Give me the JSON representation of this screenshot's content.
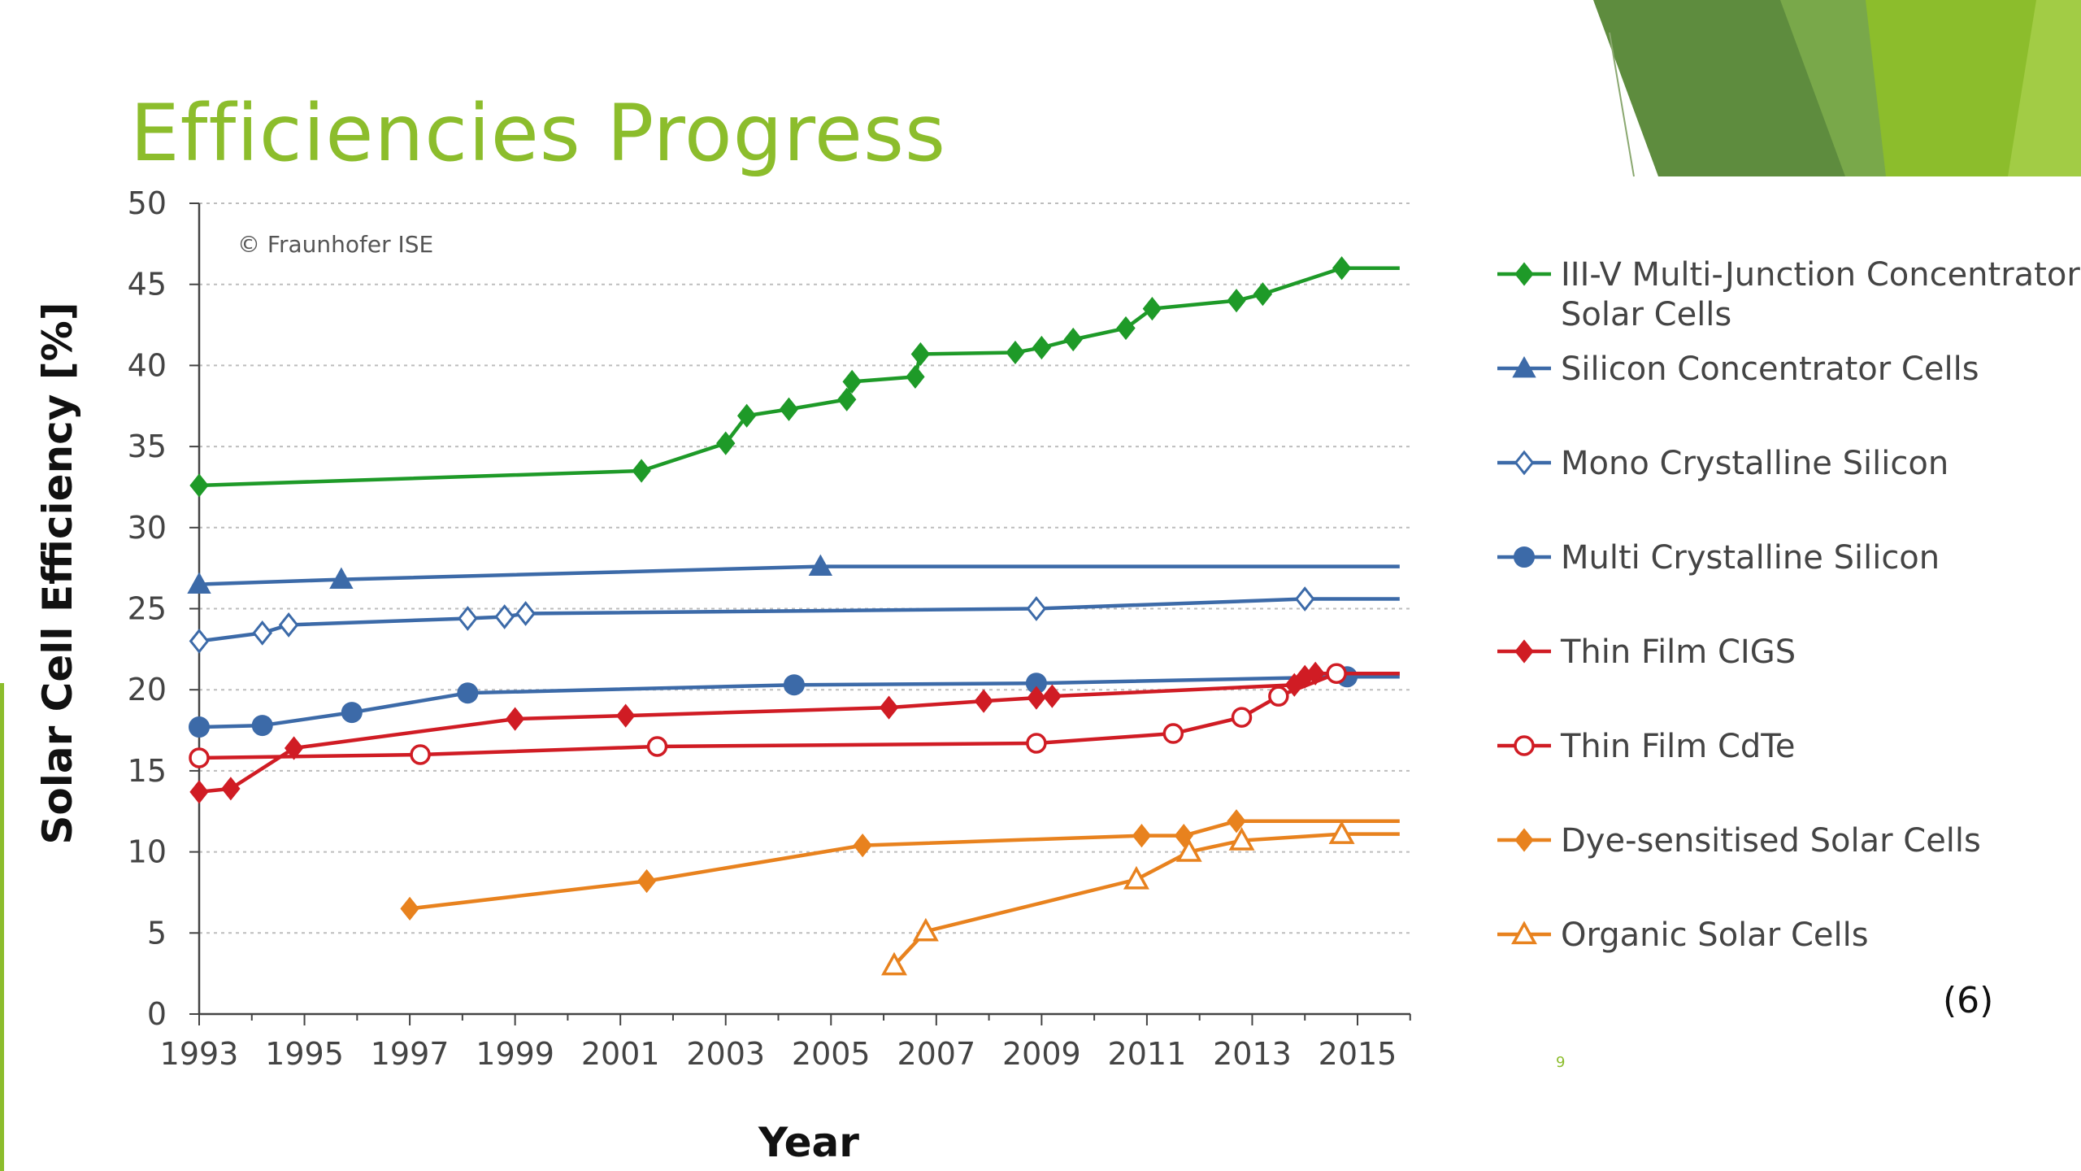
{
  "slide": {
    "title": "Efficiencies Progress",
    "reference": "(6)",
    "slide_number": "9",
    "accent_color": "#8cbd2c"
  },
  "chart_data": {
    "type": "line",
    "title": "",
    "credit": "© Fraunhofer ISE",
    "xlabel": "Year",
    "ylabel": "Solar Cell Efficiency [%]",
    "xlim": [
      1993,
      2016
    ],
    "ylim": [
      0,
      50
    ],
    "x_ticks": [
      1993,
      1995,
      1997,
      1999,
      2001,
      2003,
      2005,
      2007,
      2009,
      2011,
      2013,
      2015
    ],
    "y_ticks": [
      0,
      5,
      10,
      15,
      20,
      25,
      30,
      35,
      40,
      45,
      50
    ],
    "grid": true,
    "legend_position": "right",
    "series": [
      {
        "name": "III-V Multi-Junction Concentrator Solar Cells",
        "name_lines": [
          "III-V Multi-Junction Concentrator",
          "Solar Cells"
        ],
        "color": "#1e9a28",
        "marker": "diamond-filled",
        "points": [
          [
            1993,
            32.6
          ],
          [
            2001.4,
            33.5
          ],
          [
            2003,
            35.2
          ],
          [
            2003.4,
            36.9
          ],
          [
            2004.2,
            37.3
          ],
          [
            2005.3,
            37.9
          ],
          [
            2005.4,
            39.0
          ],
          [
            2006.6,
            39.3
          ],
          [
            2006.7,
            40.7
          ],
          [
            2008.5,
            40.8
          ],
          [
            2009,
            41.1
          ],
          [
            2009.6,
            41.6
          ],
          [
            2010.6,
            42.3
          ],
          [
            2011.1,
            43.5
          ],
          [
            2012.7,
            44.0
          ],
          [
            2013.2,
            44.4
          ],
          [
            2014.7,
            46.0
          ]
        ],
        "end_x": 2015.8
      },
      {
        "name": "Silicon Concentrator Cells",
        "name_lines": [
          "Silicon Concentrator Cells"
        ],
        "color": "#3c6aa8",
        "marker": "triangle-filled",
        "points": [
          [
            1993,
            26.5
          ],
          [
            1995.7,
            26.8
          ],
          [
            2004.8,
            27.6
          ]
        ],
        "end_x": 2015.8
      },
      {
        "name": "Mono Crystalline Silicon",
        "name_lines": [
          "Mono Crystalline Silicon"
        ],
        "color": "#3c6aa8",
        "marker": "diamond-open",
        "points": [
          [
            1993,
            23.0
          ],
          [
            1994.2,
            23.5
          ],
          [
            1994.7,
            24.0
          ],
          [
            1998.1,
            24.4
          ],
          [
            1998.8,
            24.5
          ],
          [
            1999.2,
            24.7
          ],
          [
            2008.9,
            25.0
          ],
          [
            2014.0,
            25.6
          ]
        ],
        "end_x": 2015.8
      },
      {
        "name": "Multi Crystalline Silicon",
        "name_lines": [
          "Multi Crystalline Silicon"
        ],
        "color": "#3c6aa8",
        "marker": "circle-filled",
        "points": [
          [
            1993,
            17.7
          ],
          [
            1994.2,
            17.8
          ],
          [
            1995.9,
            18.6
          ],
          [
            1998.1,
            19.8
          ],
          [
            2004.3,
            20.3
          ],
          [
            2008.9,
            20.4
          ],
          [
            2014.8,
            20.8
          ]
        ],
        "end_x": 2015.8
      },
      {
        "name": "Thin Film CIGS",
        "name_lines": [
          "Thin Film CIGS"
        ],
        "color": "#d01c24",
        "marker": "diamond-filled",
        "points": [
          [
            1993,
            13.7
          ],
          [
            1993.6,
            13.9
          ],
          [
            1994.8,
            16.4
          ],
          [
            1999.0,
            18.2
          ],
          [
            2001.1,
            18.4
          ],
          [
            2006.1,
            18.9
          ],
          [
            2007.9,
            19.3
          ],
          [
            2008.9,
            19.5
          ],
          [
            2009.2,
            19.6
          ],
          [
            2013.8,
            20.3
          ],
          [
            2014.0,
            20.8
          ],
          [
            2014.2,
            21.0
          ]
        ],
        "end_x": 2015.8
      },
      {
        "name": "Thin Film CdTe",
        "name_lines": [
          "Thin Film CdTe"
        ],
        "color": "#d01c24",
        "marker": "circle-open",
        "points": [
          [
            1993,
            15.8
          ],
          [
            1997.2,
            16.0
          ],
          [
            2001.7,
            16.5
          ],
          [
            2008.9,
            16.7
          ],
          [
            2011.5,
            17.3
          ],
          [
            2012.8,
            18.3
          ],
          [
            2013.5,
            19.6
          ],
          [
            2014.6,
            21.0
          ]
        ],
        "end_x": 2015.8
      },
      {
        "name": "Dye-sensitised Solar Cells",
        "name_lines": [
          "Dye-sensitised Solar Cells"
        ],
        "color": "#e8821e",
        "marker": "diamond-filled",
        "points": [
          [
            1997,
            6.5
          ],
          [
            2001.5,
            8.2
          ],
          [
            2005.6,
            10.4
          ],
          [
            2010.9,
            11.0
          ],
          [
            2011.7,
            11.0
          ],
          [
            2012.7,
            11.9
          ]
        ],
        "end_x": 2015.8
      },
      {
        "name": "Organic Solar Cells",
        "name_lines": [
          "Organic Solar Cells"
        ],
        "color": "#e8821e",
        "marker": "triangle-open",
        "points": [
          [
            2006.2,
            3.0
          ],
          [
            2006.8,
            5.1
          ],
          [
            2010.8,
            8.3
          ],
          [
            2011.8,
            10.0
          ],
          [
            2012.8,
            10.7
          ],
          [
            2014.7,
            11.1
          ]
        ],
        "end_x": 2015.8
      }
    ]
  }
}
